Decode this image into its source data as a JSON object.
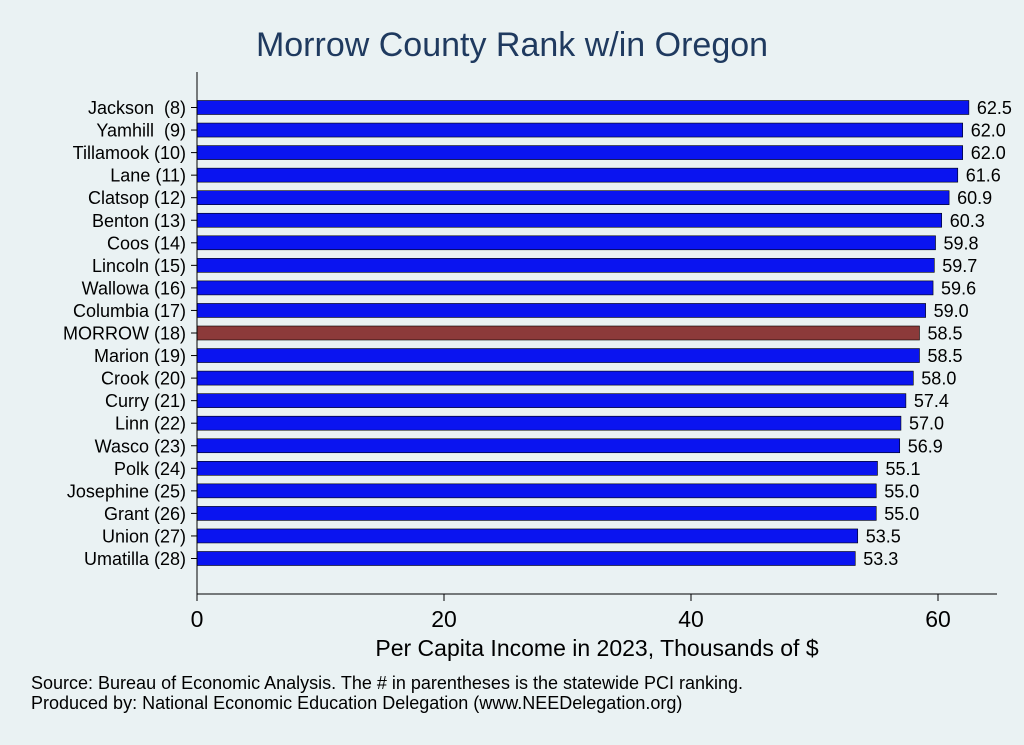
{
  "chart_data": {
    "type": "bar",
    "orientation": "horizontal",
    "title": "Morrow County Rank w/in Oregon",
    "xlabel": "Per Capita Income in 2023, Thousands of $",
    "xlim": [
      0,
      65
    ],
    "xticks": [
      0,
      20,
      40,
      60
    ],
    "grid": false,
    "categories": [
      "Jackson  (8)",
      "Yamhill  (9)",
      "Tillamook (10)",
      "Lane (11)",
      "Clatsop (12)",
      "Benton (13)",
      "Coos (14)",
      "Lincoln (15)",
      "Wallowa (16)",
      "Columbia (17)",
      "MORROW (18)",
      "Marion (19)",
      "Crook (20)",
      "Curry (21)",
      "Linn (22)",
      "Wasco (23)",
      "Polk (24)",
      "Josephine (25)",
      "Grant (26)",
      "Union (27)",
      "Umatilla (28)"
    ],
    "values": [
      62.5,
      62.0,
      62.0,
      61.6,
      60.9,
      60.3,
      59.8,
      59.7,
      59.6,
      59.0,
      58.5,
      58.5,
      58.0,
      57.4,
      57.0,
      56.9,
      55.1,
      55.0,
      55.0,
      53.5,
      53.3
    ],
    "labels": [
      "62.5",
      "62.0",
      "62.0",
      "61.6",
      "60.9",
      "60.3",
      "59.8",
      "59.7",
      "59.6",
      "59.0",
      "58.5",
      "58.5",
      "58.0",
      "57.4",
      "57.0",
      "56.9",
      "55.1",
      "55.0",
      "55.0",
      "53.5",
      "53.3"
    ],
    "highlight_index": 10,
    "colors": {
      "bar": "#0a14f0",
      "highlight": "#8c3a3a",
      "background": "#eaf2f3",
      "title": "#1f3a5f"
    }
  },
  "notes": {
    "source": "Source: Bureau of Economic Analysis. The # in parentheses is the statewide PCI ranking.",
    "producer": "Produced by: National Economic Education Delegation (www.NEEDelegation.org)"
  }
}
